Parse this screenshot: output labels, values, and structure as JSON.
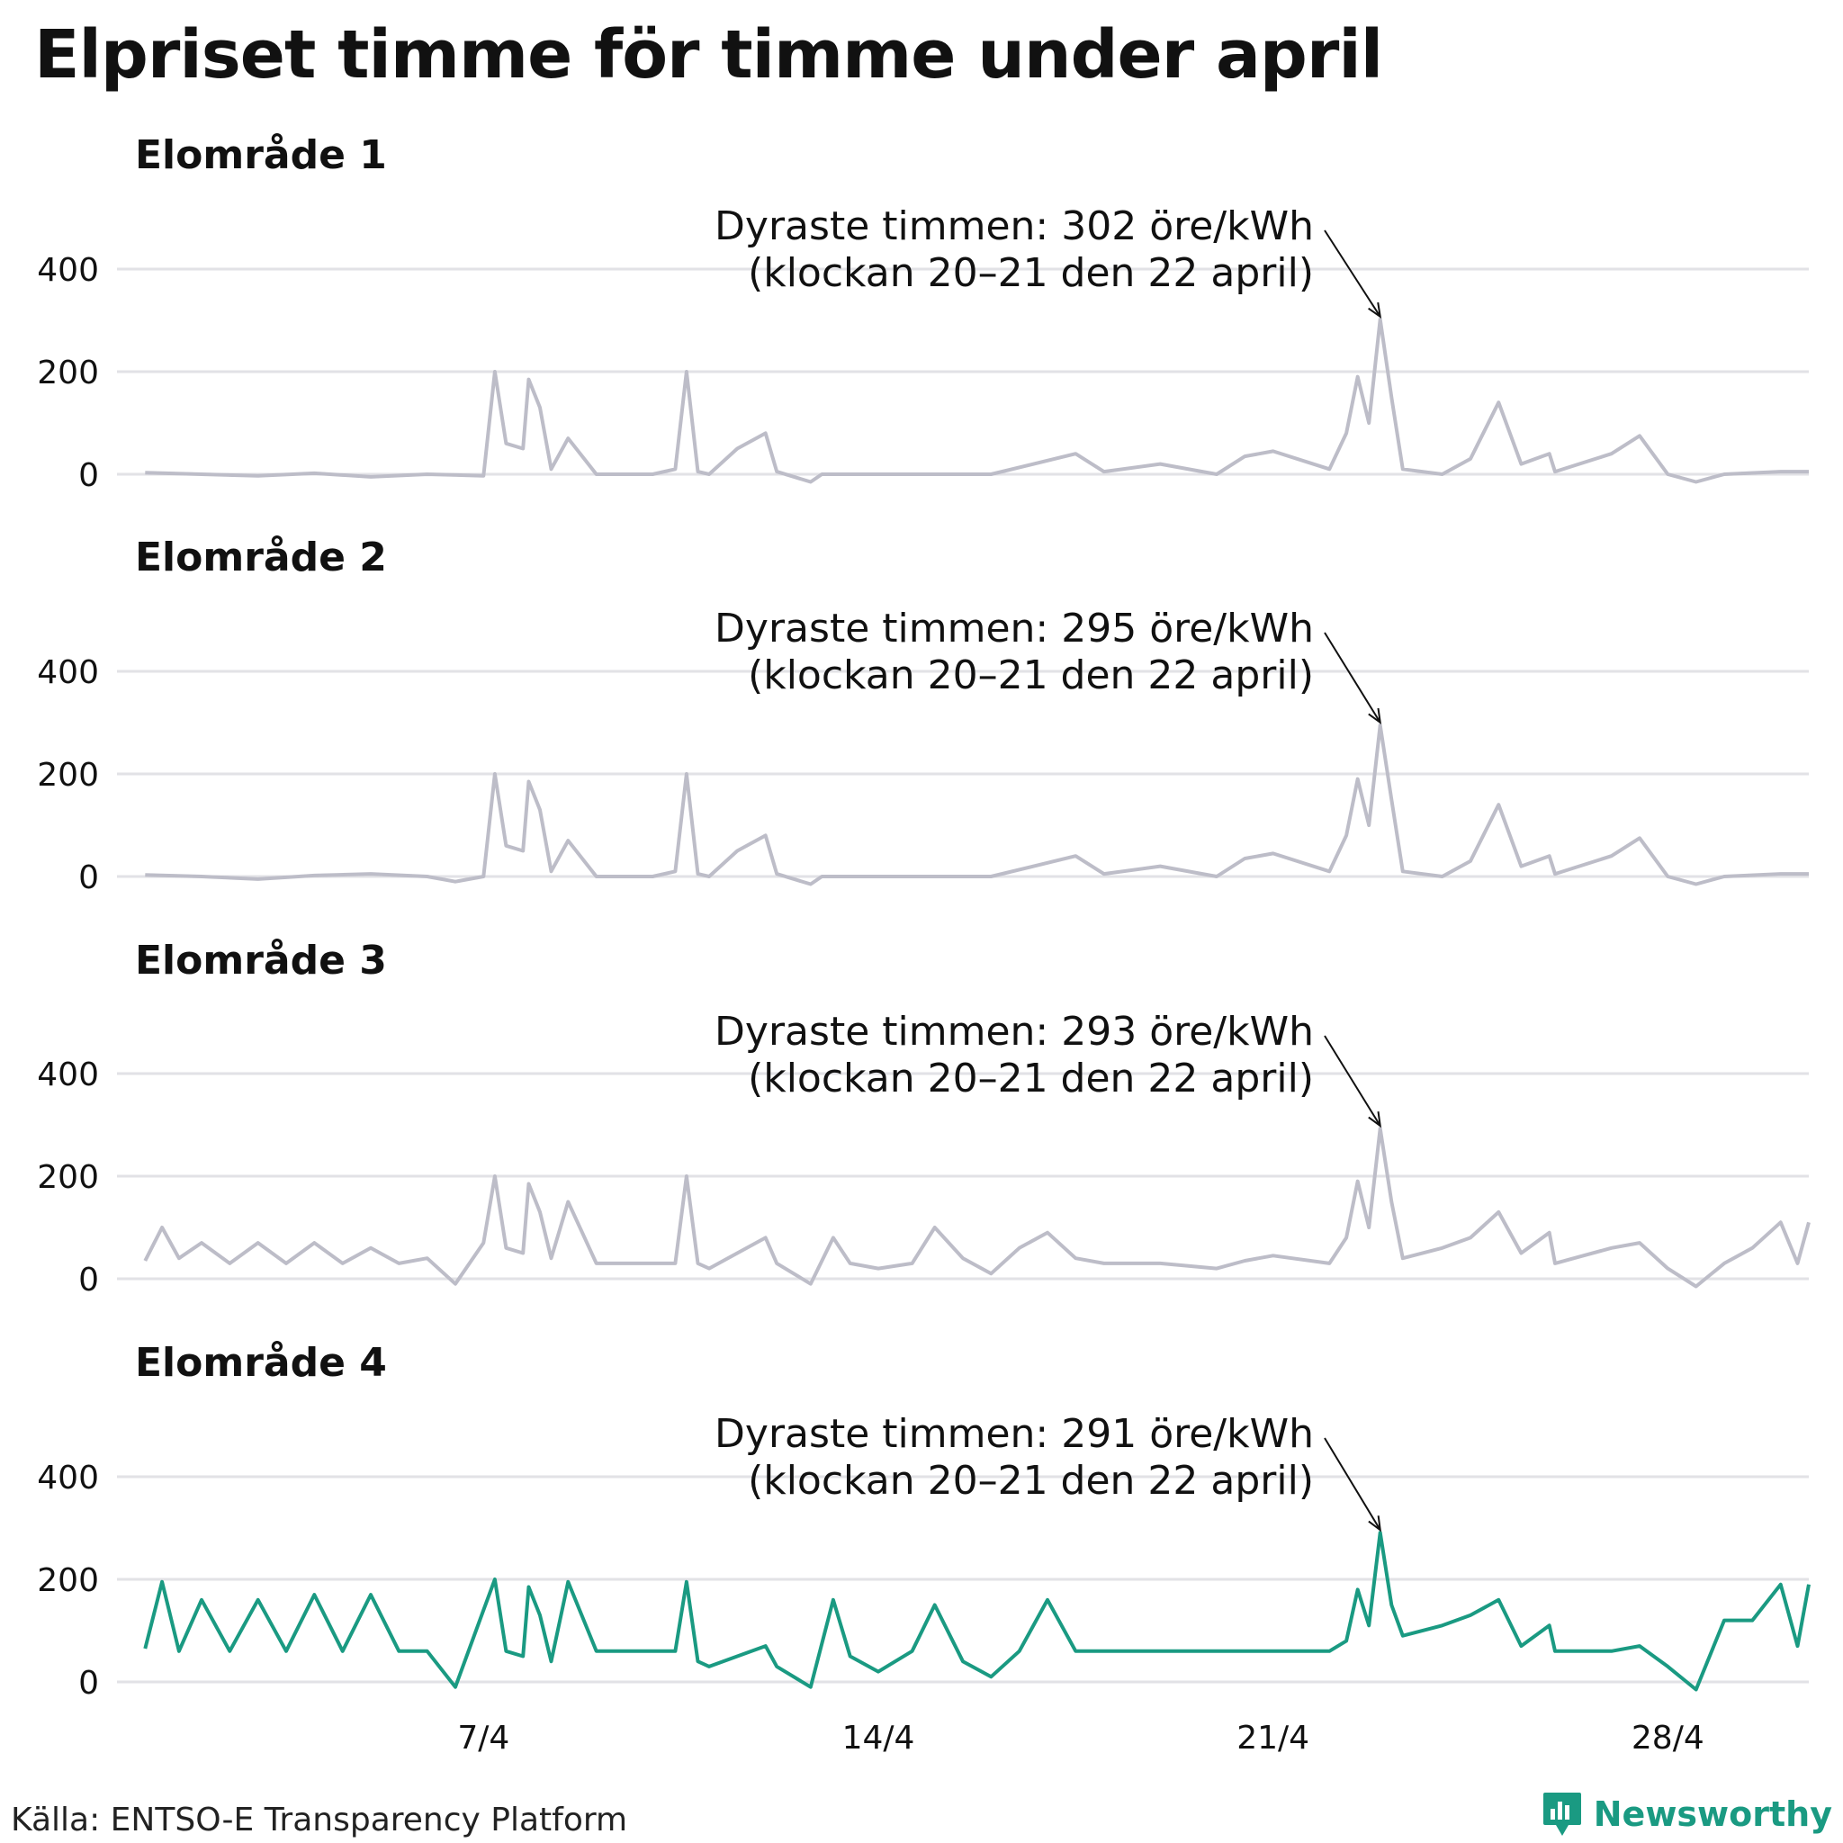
{
  "title": "Elpriset timme för timme under april",
  "source": "Källa: ENTSO-E Transparency Platform",
  "brand": "Newsworthy",
  "colors": {
    "muted_line": "#bdbdc8",
    "highlight_line": "#1a9a82",
    "grid": "#e2e2e6",
    "brand": "#1a9a82"
  },
  "chart_data": [
    {
      "type": "line",
      "title": "Elområde 1",
      "color": "#bdbdc8",
      "ylim": [
        -15,
        500
      ],
      "yticks": [
        "0",
        "200",
        "400"
      ],
      "xticks": [
        "7/4",
        "14/4",
        "21/4",
        "28/4"
      ],
      "annotation": {
        "line1": "Dyraste timmen: 302 öre/kWh",
        "line2": "(klockan 20–21 den 22 april)"
      },
      "points": [
        [
          1,
          3
        ],
        [
          2,
          0
        ],
        [
          3,
          -3
        ],
        [
          4,
          2
        ],
        [
          5,
          -5
        ],
        [
          6,
          0
        ],
        [
          7,
          -3
        ],
        [
          7.2,
          200
        ],
        [
          7.4,
          60
        ],
        [
          7.7,
          50
        ],
        [
          7.8,
          185
        ],
        [
          8,
          130
        ],
        [
          8.2,
          10
        ],
        [
          8.5,
          70
        ],
        [
          9,
          0
        ],
        [
          10,
          0
        ],
        [
          10.4,
          10
        ],
        [
          10.6,
          200
        ],
        [
          10.8,
          5
        ],
        [
          11,
          0
        ],
        [
          11.5,
          50
        ],
        [
          12,
          80
        ],
        [
          12.2,
          5
        ],
        [
          12.8,
          -15
        ],
        [
          13,
          0
        ],
        [
          14,
          0
        ],
        [
          15,
          0
        ],
        [
          16,
          0
        ],
        [
          17.5,
          40
        ],
        [
          18,
          5
        ],
        [
          19,
          20
        ],
        [
          20,
          0
        ],
        [
          20.5,
          35
        ],
        [
          21,
          45
        ],
        [
          22,
          10
        ],
        [
          22.3,
          80
        ],
        [
          22.5,
          190
        ],
        [
          22.7,
          100
        ],
        [
          22.9,
          302
        ],
        [
          23.1,
          150
        ],
        [
          23.3,
          10
        ],
        [
          24,
          0
        ],
        [
          24.5,
          30
        ],
        [
          25,
          140
        ],
        [
          25.4,
          20
        ],
        [
          25.9,
          40
        ],
        [
          26,
          5
        ],
        [
          27,
          40
        ],
        [
          27.5,
          75
        ],
        [
          28,
          0
        ],
        [
          28.5,
          -15
        ],
        [
          29,
          0
        ],
        [
          30,
          5
        ],
        [
          30.5,
          5
        ]
      ]
    },
    {
      "type": "line",
      "title": "Elområde 2",
      "color": "#bdbdc8",
      "ylim": [
        -15,
        500
      ],
      "yticks": [
        "0",
        "200",
        "400"
      ],
      "xticks": [
        "7/4",
        "14/4",
        "21/4",
        "28/4"
      ],
      "annotation": {
        "line1": "Dyraste timmen: 295 öre/kWh",
        "line2": "(klockan 20–21 den 22 april)"
      },
      "points": [
        [
          1,
          3
        ],
        [
          2,
          0
        ],
        [
          3,
          -5
        ],
        [
          4,
          2
        ],
        [
          5,
          5
        ],
        [
          6,
          0
        ],
        [
          6.5,
          -10
        ],
        [
          7,
          0
        ],
        [
          7.2,
          200
        ],
        [
          7.4,
          60
        ],
        [
          7.7,
          50
        ],
        [
          7.8,
          185
        ],
        [
          8,
          130
        ],
        [
          8.2,
          10
        ],
        [
          8.5,
          70
        ],
        [
          9,
          0
        ],
        [
          10,
          0
        ],
        [
          10.4,
          10
        ],
        [
          10.6,
          200
        ],
        [
          10.8,
          5
        ],
        [
          11,
          0
        ],
        [
          11.5,
          50
        ],
        [
          12,
          80
        ],
        [
          12.2,
          5
        ],
        [
          12.8,
          -15
        ],
        [
          13,
          0
        ],
        [
          14,
          0
        ],
        [
          15,
          0
        ],
        [
          16,
          0
        ],
        [
          17.5,
          40
        ],
        [
          18,
          5
        ],
        [
          19,
          20
        ],
        [
          20,
          0
        ],
        [
          20.5,
          35
        ],
        [
          21,
          45
        ],
        [
          22,
          10
        ],
        [
          22.3,
          80
        ],
        [
          22.5,
          190
        ],
        [
          22.7,
          100
        ],
        [
          22.9,
          295
        ],
        [
          23.1,
          150
        ],
        [
          23.3,
          10
        ],
        [
          24,
          0
        ],
        [
          24.5,
          30
        ],
        [
          25,
          140
        ],
        [
          25.4,
          20
        ],
        [
          25.9,
          40
        ],
        [
          26,
          5
        ],
        [
          27,
          40
        ],
        [
          27.5,
          75
        ],
        [
          28,
          0
        ],
        [
          28.5,
          -15
        ],
        [
          29,
          0
        ],
        [
          30,
          5
        ],
        [
          30.5,
          5
        ]
      ]
    },
    {
      "type": "line",
      "title": "Elområde 3",
      "color": "#bdbdc8",
      "ylim": [
        -15,
        500
      ],
      "yticks": [
        "0",
        "200",
        "400"
      ],
      "xticks": [
        "7/4",
        "14/4",
        "21/4",
        "28/4"
      ],
      "annotation": {
        "line1": "Dyraste timmen: 293 öre/kWh",
        "line2": "(klockan 20–21 den 22 april)"
      },
      "points": [
        [
          1,
          35
        ],
        [
          1.3,
          100
        ],
        [
          1.6,
          40
        ],
        [
          2,
          70
        ],
        [
          2.5,
          30
        ],
        [
          3,
          70
        ],
        [
          3.5,
          30
        ],
        [
          4,
          70
        ],
        [
          4.5,
          30
        ],
        [
          5,
          60
        ],
        [
          5.5,
          30
        ],
        [
          6,
          40
        ],
        [
          6.5,
          -10
        ],
        [
          7,
          70
        ],
        [
          7.2,
          200
        ],
        [
          7.4,
          60
        ],
        [
          7.7,
          50
        ],
        [
          7.8,
          185
        ],
        [
          8,
          130
        ],
        [
          8.2,
          40
        ],
        [
          8.5,
          150
        ],
        [
          9,
          30
        ],
        [
          10,
          30
        ],
        [
          10.4,
          30
        ],
        [
          10.6,
          200
        ],
        [
          10.8,
          30
        ],
        [
          11,
          20
        ],
        [
          11.5,
          50
        ],
        [
          12,
          80
        ],
        [
          12.2,
          30
        ],
        [
          12.8,
          -10
        ],
        [
          13.2,
          80
        ],
        [
          13.5,
          30
        ],
        [
          14,
          20
        ],
        [
          14.6,
          30
        ],
        [
          15,
          100
        ],
        [
          15.5,
          40
        ],
        [
          16,
          10
        ],
        [
          16.5,
          60
        ],
        [
          17,
          90
        ],
        [
          17.5,
          40
        ],
        [
          18,
          30
        ],
        [
          19,
          30
        ],
        [
          20,
          20
        ],
        [
          20.5,
          35
        ],
        [
          21,
          45
        ],
        [
          22,
          30
        ],
        [
          22.3,
          80
        ],
        [
          22.5,
          190
        ],
        [
          22.7,
          100
        ],
        [
          22.9,
          293
        ],
        [
          23.1,
          150
        ],
        [
          23.3,
          40
        ],
        [
          24,
          60
        ],
        [
          24.5,
          80
        ],
        [
          25,
          130
        ],
        [
          25.4,
          50
        ],
        [
          25.9,
          90
        ],
        [
          26,
          30
        ],
        [
          27,
          60
        ],
        [
          27.5,
          70
        ],
        [
          28,
          20
        ],
        [
          28.5,
          -15
        ],
        [
          29,
          30
        ],
        [
          29.5,
          60
        ],
        [
          30,
          110
        ],
        [
          30.3,
          30
        ],
        [
          30.5,
          110
        ]
      ]
    },
    {
      "type": "line",
      "title": "Elområde 4",
      "color": "#1a9a82",
      "ylim": [
        -15,
        500
      ],
      "yticks": [
        "0",
        "200",
        "400"
      ],
      "xticks": [
        "7/4",
        "14/4",
        "21/4",
        "28/4"
      ],
      "annotation": {
        "line1": "Dyraste timmen: 291 öre/kWh",
        "line2": "(klockan 20–21 den 22 april)"
      },
      "points": [
        [
          1,
          65
        ],
        [
          1.3,
          195
        ],
        [
          1.6,
          60
        ],
        [
          2,
          160
        ],
        [
          2.5,
          60
        ],
        [
          3,
          160
        ],
        [
          3.5,
          60
        ],
        [
          4,
          170
        ],
        [
          4.5,
          60
        ],
        [
          5,
          170
        ],
        [
          5.5,
          60
        ],
        [
          6,
          60
        ],
        [
          6.5,
          -10
        ],
        [
          7,
          140
        ],
        [
          7.2,
          200
        ],
        [
          7.4,
          60
        ],
        [
          7.7,
          50
        ],
        [
          7.8,
          185
        ],
        [
          8,
          130
        ],
        [
          8.2,
          40
        ],
        [
          8.5,
          195
        ],
        [
          9,
          60
        ],
        [
          10,
          60
        ],
        [
          10.4,
          60
        ],
        [
          10.6,
          195
        ],
        [
          10.8,
          40
        ],
        [
          11,
          30
        ],
        [
          11.5,
          50
        ],
        [
          12,
          70
        ],
        [
          12.2,
          30
        ],
        [
          12.8,
          -10
        ],
        [
          13.2,
          160
        ],
        [
          13.5,
          50
        ],
        [
          14,
          20
        ],
        [
          14.6,
          60
        ],
        [
          15,
          150
        ],
        [
          15.5,
          40
        ],
        [
          16,
          10
        ],
        [
          16.5,
          60
        ],
        [
          17,
          160
        ],
        [
          17.5,
          60
        ],
        [
          18,
          60
        ],
        [
          19,
          60
        ],
        [
          20,
          60
        ],
        [
          20.5,
          60
        ],
        [
          21,
          60
        ],
        [
          22,
          60
        ],
        [
          22.3,
          80
        ],
        [
          22.5,
          180
        ],
        [
          22.7,
          110
        ],
        [
          22.9,
          291
        ],
        [
          23.1,
          150
        ],
        [
          23.3,
          90
        ],
        [
          24,
          110
        ],
        [
          24.5,
          130
        ],
        [
          25,
          160
        ],
        [
          25.4,
          70
        ],
        [
          25.9,
          110
        ],
        [
          26,
          60
        ],
        [
          27,
          60
        ],
        [
          27.5,
          70
        ],
        [
          28,
          30
        ],
        [
          28.5,
          -15
        ],
        [
          29,
          120
        ],
        [
          29.5,
          120
        ],
        [
          30,
          190
        ],
        [
          30.3,
          70
        ],
        [
          30.5,
          190
        ]
      ]
    }
  ]
}
